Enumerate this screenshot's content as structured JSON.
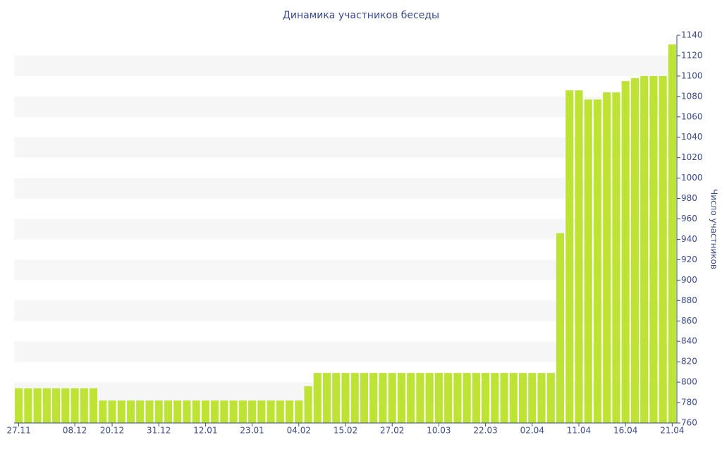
{
  "chart_data": {
    "type": "bar",
    "title": "Динамика участников беседы",
    "y_axis_label": "Число участников",
    "categories": [
      "27.11",
      null,
      null,
      null,
      null,
      null,
      "08.12",
      null,
      null,
      null,
      "20.12",
      null,
      null,
      null,
      null,
      "31.12",
      null,
      null,
      null,
      null,
      "12.01",
      null,
      null,
      null,
      null,
      "23.01",
      null,
      null,
      null,
      null,
      "04.02",
      null,
      null,
      null,
      null,
      "15.02",
      null,
      null,
      null,
      null,
      "27.02",
      null,
      null,
      null,
      null,
      "10.03",
      null,
      null,
      null,
      null,
      "22.03",
      null,
      null,
      null,
      null,
      "02.04",
      null,
      null,
      null,
      null,
      "11.04",
      null,
      null,
      null,
      null,
      "16.04",
      null,
      null,
      null,
      null,
      "21.04"
    ],
    "values": [
      794,
      794,
      794,
      794,
      794,
      794,
      794,
      794,
      794,
      782,
      782,
      782,
      782,
      782,
      782,
      782,
      782,
      782,
      782,
      782,
      782,
      782,
      782,
      782,
      782,
      782,
      782,
      782,
      782,
      782,
      782,
      796,
      809,
      809,
      809,
      809,
      809,
      809,
      809,
      809,
      809,
      809,
      809,
      809,
      809,
      809,
      809,
      809,
      809,
      809,
      809,
      809,
      809,
      809,
      809,
      809,
      809,
      809,
      946,
      1086,
      1086,
      1077,
      1077,
      1084,
      1084,
      1095,
      1098,
      1100,
      1100,
      1100,
      1131
    ],
    "color": "#bde335",
    "ylim": [
      760,
      1140
    ],
    "yticks": [
      760,
      780,
      800,
      820,
      840,
      860,
      880,
      900,
      920,
      940,
      960,
      980,
      1000,
      1020,
      1040,
      1060,
      1080,
      1100,
      1120,
      1140
    ],
    "grid": true,
    "y_axis_side": "right"
  }
}
